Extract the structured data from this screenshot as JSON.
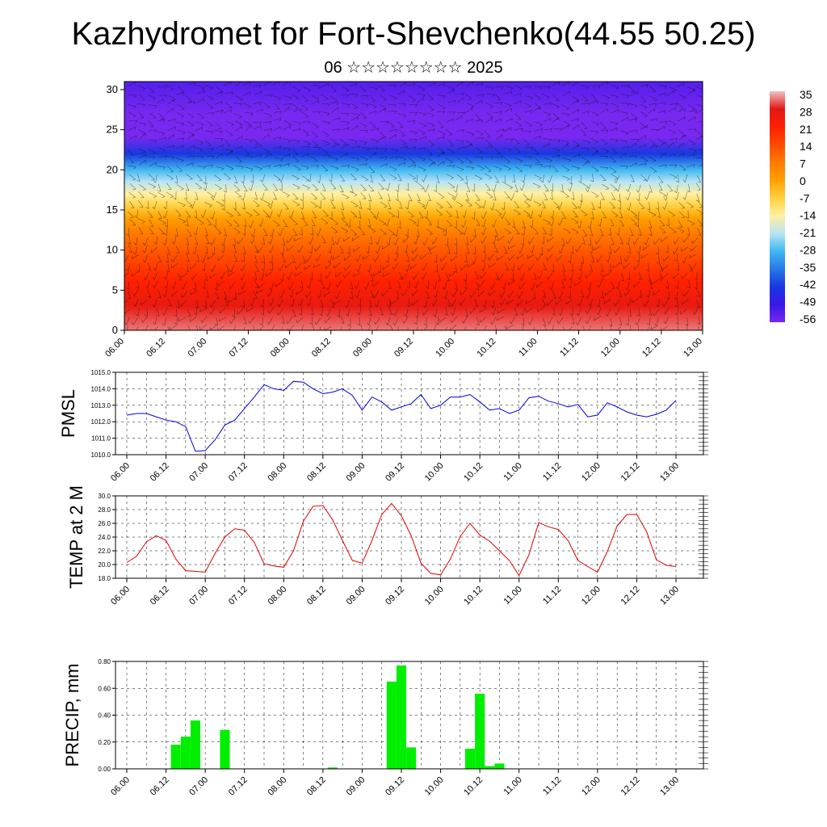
{
  "header": {
    "title": "Kazhydromet for Fort-Shevchenko(44.55 50.25)",
    "subtitle": "06 ☆☆☆☆☆☆☆☆ 2025"
  },
  "time_ticks": [
    "06.00",
    "06.12",
    "07.00",
    "07.12",
    "08.00",
    "08.12",
    "09.00",
    "09.12",
    "10.00",
    "10.12",
    "11.00",
    "11.12",
    "12.00",
    "12.12",
    "13.00"
  ],
  "chart_data": [
    {
      "type": "heatmap",
      "panel": "cross-section",
      "description_of_content": "time-height temperature cross-section with wind vectors",
      "x_ticks": [
        "06.00",
        "06.12",
        "07.00",
        "07.12",
        "08.00",
        "08.12",
        "09.00",
        "09.12",
        "10.00",
        "10.12",
        "11.00",
        "11.12",
        "12.00",
        "12.12",
        "13.00"
      ],
      "y_ticks": [
        0,
        5,
        10,
        15,
        20,
        25,
        30
      ],
      "ylim": [
        0,
        31
      ],
      "colorbar": {
        "labels": [
          35,
          28,
          21,
          14,
          7,
          0,
          -7,
          -14,
          -21,
          -28,
          -35,
          -42,
          -49,
          -56
        ],
        "colors": [
          "#f2c0c0",
          "#e01818",
          "#ff2000",
          "#ff4a00",
          "#ff7a00",
          "#ffa000",
          "#ffd040",
          "#fff0a0",
          "#b8e4f4",
          "#40b8f0",
          "#2878e8",
          "#1838e0",
          "#3818e8",
          "#7828f0"
        ]
      },
      "temperature_profile": {
        "height": [
          0,
          3,
          6,
          9,
          12,
          14,
          15.5,
          17,
          18.5,
          20,
          22,
          24,
          27,
          31
        ],
        "temp": [
          32,
          26,
          21,
          14,
          7,
          0,
          -7,
          -14,
          -21,
          -28,
          -42,
          -56,
          -56,
          -52
        ]
      }
    },
    {
      "type": "line",
      "ylabel": "PMSL",
      "ylim": [
        1010.0,
        1015.0
      ],
      "y_ticks": [
        "1010.0",
        "1011.0",
        "1012.0",
        "1013.0",
        "1014.0",
        "1015.0"
      ],
      "x_ticks": [
        "06.00",
        "06.12",
        "07.00",
        "07.12",
        "08.00",
        "08.12",
        "09.00",
        "09.12",
        "10.00",
        "10.12",
        "11.00",
        "11.12",
        "12.00",
        "12.12",
        "13.00"
      ],
      "series": [
        {
          "color": "#0000dd",
          "values": [
            1012.4,
            1012.5,
            1012.5,
            1012.3,
            1012.1,
            1012.0,
            1011.7,
            1010.2,
            1010.25,
            1010.9,
            1011.8,
            1012.1,
            1012.8,
            1013.5,
            1014.25,
            1014.0,
            1013.9,
            1014.45,
            1014.4,
            1014.0,
            1013.7,
            1013.8,
            1014.0,
            1013.6,
            1012.7,
            1013.5,
            1013.2,
            1012.7,
            1012.9,
            1013.1,
            1013.65,
            1012.8,
            1013.0,
            1013.5,
            1013.5,
            1013.65,
            1013.2,
            1012.7,
            1012.8,
            1012.5,
            1012.7,
            1013.45,
            1013.55,
            1013.25,
            1013.1,
            1012.9,
            1013.05,
            1012.3,
            1012.4,
            1013.15,
            1012.9,
            1012.6,
            1012.4,
            1012.3,
            1012.45,
            1012.7,
            1013.3
          ]
        }
      ]
    },
    {
      "type": "line",
      "ylabel": "TEMP at 2 M",
      "ylim": [
        18.0,
        30.0
      ],
      "y_ticks": [
        "18.0",
        "20.0",
        "22.0",
        "24.0",
        "26.0",
        "28.0",
        "30.0"
      ],
      "x_ticks": [
        "06.00",
        "06.12",
        "07.00",
        "07.12",
        "08.00",
        "08.12",
        "09.00",
        "09.12",
        "10.00",
        "10.12",
        "11.00",
        "11.12",
        "12.00",
        "12.12",
        "13.00"
      ],
      "series": [
        {
          "color": "#dd0000",
          "values": [
            20.3,
            21.2,
            23.3,
            24.2,
            23.5,
            20.8,
            19.1,
            19.0,
            18.9,
            21.6,
            24.0,
            25.2,
            25.0,
            23.2,
            20.1,
            19.8,
            19.6,
            22.0,
            26.3,
            28.5,
            28.6,
            26.5,
            23.5,
            20.6,
            20.2,
            23.5,
            27.3,
            28.9,
            27.1,
            24.2,
            20.2,
            18.7,
            18.5,
            20.8,
            24.1,
            26.0,
            24.3,
            23.4,
            22.0,
            20.6,
            18.4,
            21.4,
            26.1,
            25.5,
            25.1,
            23.5,
            20.6,
            19.7,
            18.9,
            21.9,
            25.6,
            27.3,
            27.3,
            24.8,
            20.7,
            19.9,
            19.7
          ]
        }
      ]
    },
    {
      "type": "bar",
      "ylabel": "PRECIP, mm",
      "ylim": [
        0.0,
        0.8
      ],
      "y_ticks": [
        "0.00",
        "0.20",
        "0.40",
        "0.60",
        "0.80"
      ],
      "x_ticks": [
        "06.00",
        "06.12",
        "07.00",
        "07.12",
        "08.00",
        "08.12",
        "09.00",
        "09.12",
        "10.00",
        "10.12",
        "11.00",
        "11.12",
        "12.00",
        "12.12",
        "13.00"
      ],
      "bar_color": "#00ee00",
      "series": [
        {
          "values": [
            0,
            0,
            0,
            0,
            0,
            0.18,
            0.24,
            0.36,
            0,
            0,
            0.29,
            0,
            0,
            0,
            0,
            0,
            0,
            0,
            0,
            0,
            0,
            0.01,
            0,
            0,
            0,
            0,
            0,
            0.65,
            0.77,
            0.16,
            0,
            0,
            0,
            0,
            0,
            0.15,
            0.56,
            0.02,
            0.04,
            0,
            0,
            0,
            0,
            0,
            0,
            0,
            0,
            0,
            0,
            0,
            0,
            0,
            0,
            0,
            0,
            0,
            0
          ]
        }
      ]
    }
  ]
}
